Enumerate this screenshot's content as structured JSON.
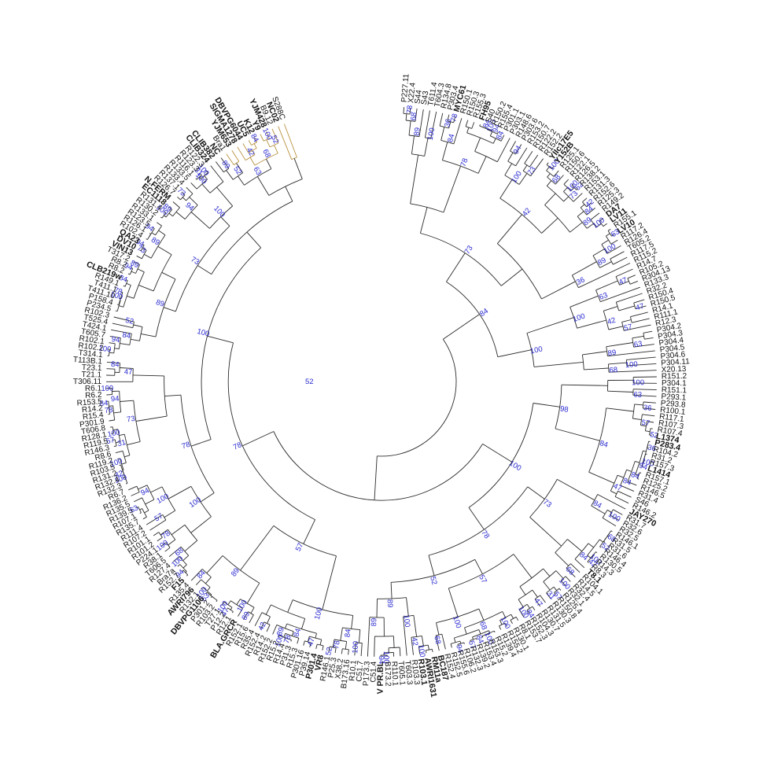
{
  "colors": {
    "default_label": "#111111",
    "red_label": "#e02020",
    "blue_label": "#15157a",
    "purple_label": "#7a1a7a",
    "bootstrap": "#2a2ad0",
    "branch": "#2b2b2b",
    "tan_branch": "#b8913f"
  },
  "root_support": "52",
  "leaves": [
    {
      "label": "P227.11",
      "c": "k"
    },
    {
      "label": "X22.4",
      "c": "k"
    },
    {
      "label": "S44",
      "c": "k"
    },
    {
      "label": "S43",
      "c": "k"
    },
    {
      "label": "T611.4",
      "c": "k"
    },
    {
      "label": "T604.3",
      "c": "k"
    },
    {
      "label": "R134.8",
      "c": "k"
    },
    {
      "label": "P303.4",
      "c": "k"
    },
    {
      "label": "MYC61",
      "c": "r"
    },
    {
      "label": "R150.1",
      "c": "k"
    },
    {
      "label": "R150.3",
      "c": "k"
    },
    {
      "label": "R155.3",
      "c": "k"
    },
    {
      "label": "FH95",
      "c": "r"
    },
    {
      "label": "S40",
      "c": "k"
    },
    {
      "label": "R150.2",
      "c": "k"
    },
    {
      "label": "R155.4",
      "c": "k"
    },
    {
      "label": "P301.1",
      "c": "k"
    },
    {
      "label": "P303.1",
      "c": "k"
    },
    {
      "label": "R148.6",
      "c": "k"
    },
    {
      "label": "P303.6",
      "c": "k"
    },
    {
      "label": "R153.2",
      "c": "k"
    },
    {
      "label": "R150.7",
      "c": "k"
    },
    {
      "label": "R122.2",
      "c": "k"
    },
    {
      "label": "R152.2",
      "c": "k"
    },
    {
      "label": "YIIc17E5",
      "c": "b"
    },
    {
      "label": "Y152B",
      "c": "b"
    },
    {
      "label": "R125.1",
      "c": "k"
    },
    {
      "label": "R150.6",
      "c": "k"
    },
    {
      "label": "R122.1",
      "c": "k"
    },
    {
      "label": "R126.5",
      "c": "k"
    },
    {
      "label": "R138.2",
      "c": "k"
    },
    {
      "label": "R153.1",
      "c": "k"
    },
    {
      "label": "R131.3",
      "c": "k"
    },
    {
      "label": "R152.6",
      "c": "k"
    },
    {
      "label": "R125.3",
      "c": "k"
    },
    {
      "label": "R149.2",
      "c": "k"
    },
    {
      "label": "DA7",
      "c": "r"
    },
    {
      "label": "LV11",
      "c": "r"
    },
    {
      "label": "R155.1",
      "c": "k"
    },
    {
      "label": "LV10",
      "c": "r"
    },
    {
      "label": "R117.2",
      "c": "k"
    },
    {
      "label": "R126.4",
      "c": "k"
    },
    {
      "label": "T605.2",
      "c": "k"
    },
    {
      "label": "R117.5",
      "c": "k"
    },
    {
      "label": "R115.2",
      "c": "k"
    },
    {
      "label": "R14.7",
      "c": "k"
    },
    {
      "label": "R105.2",
      "c": "k"
    },
    {
      "label": "R304.13",
      "c": "k"
    },
    {
      "label": "R133.3",
      "c": "k"
    },
    {
      "label": "R32.2",
      "c": "k"
    },
    {
      "label": "R150.4",
      "c": "k"
    },
    {
      "label": "R150.5",
      "c": "k"
    },
    {
      "label": "R14.1",
      "c": "k"
    },
    {
      "label": "R111.1",
      "c": "k"
    },
    {
      "label": "R12.3",
      "c": "k"
    },
    {
      "label": "P304.2",
      "c": "k"
    },
    {
      "label": "P304.3",
      "c": "k"
    },
    {
      "label": "P304.4",
      "c": "k"
    },
    {
      "label": "P304.5",
      "c": "k"
    },
    {
      "label": "P304.6",
      "c": "k"
    },
    {
      "label": "P304.11",
      "c": "k"
    },
    {
      "label": "X20.13",
      "c": "k"
    },
    {
      "label": "R151.2",
      "c": "k"
    },
    {
      "label": "P304.1",
      "c": "k"
    },
    {
      "label": "R151.1",
      "c": "k"
    },
    {
      "label": "P293.1",
      "c": "k"
    },
    {
      "label": "P293.8",
      "c": "k"
    },
    {
      "label": "R100.1",
      "c": "k"
    },
    {
      "label": "R117.1",
      "c": "k"
    },
    {
      "label": "R107.3",
      "c": "k"
    },
    {
      "label": "R107.4",
      "c": "k"
    },
    {
      "label": "L1374",
      "c": "b"
    },
    {
      "label": "P283.4",
      "c": "p"
    },
    {
      "label": "R104.2",
      "c": "k"
    },
    {
      "label": "R31.2",
      "c": "k"
    },
    {
      "label": "R157.3",
      "c": "k"
    },
    {
      "label": "L1414",
      "c": "r"
    },
    {
      "label": "R157.1",
      "c": "k"
    },
    {
      "label": "R125.2",
      "c": "k"
    },
    {
      "label": "R146.5",
      "c": "k"
    },
    {
      "label": "R31.4",
      "c": "k"
    },
    {
      "label": "S46",
      "c": "k"
    },
    {
      "label": "R146.2",
      "c": "k"
    },
    {
      "label": "JAY270",
      "c": "b"
    },
    {
      "label": "R31.7",
      "c": "k"
    },
    {
      "label": "R32.6",
      "c": "k"
    },
    {
      "label": "R32.5",
      "c": "k"
    },
    {
      "label": "R146.1",
      "c": "k"
    },
    {
      "label": "R31.5",
      "c": "k"
    },
    {
      "label": "R31.6",
      "c": "k"
    },
    {
      "label": "R146.4",
      "c": "k"
    },
    {
      "label": "R130.5",
      "c": "k"
    },
    {
      "label": "R14.3",
      "c": "k"
    },
    {
      "label": "R8.3",
      "c": "k"
    },
    {
      "label": "T8.1",
      "c": "p"
    },
    {
      "label": "R104.1",
      "c": "k"
    },
    {
      "label": "R14.5",
      "c": "k"
    },
    {
      "label": "R32.4",
      "c": "k"
    },
    {
      "label": "R32.1",
      "c": "k"
    },
    {
      "label": "R125.4",
      "c": "k"
    },
    {
      "label": "R150.8",
      "c": "k"
    },
    {
      "label": "R130.3",
      "c": "k"
    },
    {
      "label": "R131.5",
      "c": "k"
    },
    {
      "label": "R130.7",
      "c": "k"
    },
    {
      "label": "R104.3",
      "c": "k"
    },
    {
      "label": "R152.3",
      "c": "k"
    },
    {
      "label": "R153.7",
      "c": "k"
    },
    {
      "label": "R8.1",
      "c": "k"
    },
    {
      "label": "R130.1",
      "c": "k"
    },
    {
      "label": "R155.2",
      "c": "k"
    },
    {
      "label": "R139.4",
      "c": "k"
    },
    {
      "label": "R15.2",
      "c": "k"
    },
    {
      "label": "R153.3",
      "c": "k"
    },
    {
      "label": "R153.4",
      "c": "k"
    },
    {
      "label": "R139.2",
      "c": "k"
    },
    {
      "label": "R132.3",
      "c": "k"
    },
    {
      "label": "R106.2",
      "c": "k"
    },
    {
      "label": "R155.6",
      "c": "k"
    },
    {
      "label": "R152.5",
      "c": "k"
    },
    {
      "label": "R152.4",
      "c": "k"
    },
    {
      "label": "BC187",
      "c": "b"
    },
    {
      "label": "RM11a",
      "c": "b"
    },
    {
      "label": "AWRI1631",
      "c": "r"
    },
    {
      "label": "R103.1",
      "c": "p"
    },
    {
      "label": "R103.3",
      "c": "k"
    },
    {
      "label": "T603.3",
      "c": "k"
    },
    {
      "label": "T605.1",
      "c": "k"
    },
    {
      "label": "R110.1",
      "c": "k"
    },
    {
      "label": "B173.2",
      "c": "k"
    },
    {
      "label": "V PR.BL",
      "c": "r"
    },
    {
      "label": "C51.4",
      "c": "k"
    },
    {
      "label": "P173.3",
      "c": "k"
    },
    {
      "label": "C51.7",
      "c": "k"
    },
    {
      "label": "R10.1",
      "c": "k"
    },
    {
      "label": "B173.16",
      "c": "k"
    },
    {
      "label": "X38.2",
      "c": "k"
    },
    {
      "label": "P25.3",
      "c": "k"
    },
    {
      "label": "R146.1",
      "c": "k"
    },
    {
      "label": "VR8",
      "c": "r"
    },
    {
      "label": "P301.4",
      "c": "p"
    },
    {
      "label": "P39.14",
      "c": "k"
    },
    {
      "label": "P301.16",
      "c": "k"
    },
    {
      "label": "R15.3",
      "c": "k"
    },
    {
      "label": "P31.3",
      "c": "k"
    },
    {
      "label": "R14.4",
      "c": "k"
    },
    {
      "label": "R15.2",
      "c": "k"
    },
    {
      "label": "R152.2",
      "c": "k"
    },
    {
      "label": "R14.2",
      "c": "k"
    },
    {
      "label": "R152.4",
      "c": "k"
    },
    {
      "label": "R35.4",
      "c": "k"
    },
    {
      "label": "R15.6",
      "c": "k"
    },
    {
      "label": "R152.1",
      "c": "k"
    },
    {
      "label": "BLA.GRCR",
      "c": "r"
    },
    {
      "label": "R12.1",
      "c": "k"
    },
    {
      "label": "P12.2",
      "c": "k"
    },
    {
      "label": "T27.1",
      "c": "k"
    },
    {
      "label": "R103.2",
      "c": "k"
    },
    {
      "label": "P301.2",
      "c": "k"
    },
    {
      "label": "DBVPG1106",
      "c": "b"
    },
    {
      "label": "R132.1",
      "c": "k"
    },
    {
      "label": "AWRI796",
      "c": "r"
    },
    {
      "label": "R135.4",
      "c": "k"
    },
    {
      "label": "F15",
      "c": "r"
    },
    {
      "label": "R152.7",
      "c": "k"
    },
    {
      "label": "Bra7a",
      "c": "k"
    },
    {
      "label": "R127.4",
      "c": "k"
    },
    {
      "label": "T606.5",
      "c": "k"
    },
    {
      "label": "R38.1",
      "c": "k"
    },
    {
      "label": "P224.1",
      "c": "k"
    },
    {
      "label": "R101.2",
      "c": "k"
    },
    {
      "label": "R101.1",
      "c": "k"
    },
    {
      "label": "R107.2",
      "c": "k"
    },
    {
      "label": "R111.4",
      "c": "k"
    },
    {
      "label": "R135.7",
      "c": "k"
    },
    {
      "label": "R107.1",
      "c": "k"
    },
    {
      "label": "R139.5",
      "c": "k"
    },
    {
      "label": "R135.5",
      "c": "k"
    },
    {
      "label": "R136.2",
      "c": "k"
    },
    {
      "label": "R6.7",
      "c": "k"
    },
    {
      "label": "R132.3",
      "c": "k"
    },
    {
      "label": "R132.4",
      "c": "k"
    },
    {
      "label": "R131.2",
      "c": "k"
    },
    {
      "label": "R103.5",
      "c": "k"
    },
    {
      "label": "R119.2",
      "c": "k"
    },
    {
      "label": "R8.6",
      "c": "k"
    },
    {
      "label": "R146.3",
      "c": "k"
    },
    {
      "label": "R119.5",
      "c": "k"
    },
    {
      "label": "R128.1",
      "c": "k"
    },
    {
      "label": "T606.8",
      "c": "k"
    },
    {
      "label": "P301.9",
      "c": "k"
    },
    {
      "label": "R15.4",
      "c": "k"
    },
    {
      "label": "R14.2",
      "c": "k"
    },
    {
      "label": "R153.5",
      "c": "k"
    },
    {
      "label": "R6.2",
      "c": "k"
    },
    {
      "label": "R6.1",
      "c": "k"
    },
    {
      "label": "T306.11",
      "c": "k"
    },
    {
      "label": "T21.1",
      "c": "k"
    },
    {
      "label": "T23.1",
      "c": "k"
    },
    {
      "label": "T113B.1",
      "c": "k"
    },
    {
      "label": "T314.1",
      "c": "k"
    },
    {
      "label": "R102.2",
      "c": "k"
    },
    {
      "label": "R102.1",
      "c": "k"
    },
    {
      "label": "T605.7",
      "c": "k"
    },
    {
      "label": "T424.1",
      "c": "k"
    },
    {
      "label": "T525.4",
      "c": "k"
    },
    {
      "label": "R102.3",
      "c": "k"
    },
    {
      "label": "P234.5",
      "c": "k"
    },
    {
      "label": "P158.4",
      "c": "k"
    },
    {
      "label": "T411.10",
      "c": "k"
    },
    {
      "label": "T411.1",
      "c": "k"
    },
    {
      "label": "R149.1",
      "c": "k"
    },
    {
      "label": "CLB219w",
      "c": "b"
    },
    {
      "label": "R8.2",
      "c": "k"
    },
    {
      "label": "R8.2",
      "c": "k"
    },
    {
      "label": "T317.2",
      "c": "k"
    },
    {
      "label": "VIN13",
      "c": "r"
    },
    {
      "label": "DV10",
      "c": "r"
    },
    {
      "label": "QA23",
      "c": "r"
    },
    {
      "label": "R102.4",
      "c": "k"
    },
    {
      "label": "R126.1",
      "c": "k"
    },
    {
      "label": "R123.5",
      "c": "k"
    },
    {
      "label": "R133.1",
      "c": "k"
    },
    {
      "label": "R130.2",
      "c": "k"
    },
    {
      "label": "R131.4",
      "c": "k"
    },
    {
      "label": "EC1118",
      "c": "r"
    },
    {
      "label": "N.FERM",
      "c": "r"
    },
    {
      "label": "R126.7",
      "c": "k"
    },
    {
      "label": "R137.1",
      "c": "k"
    },
    {
      "label": "R133.4",
      "c": "k"
    },
    {
      "label": "R133.5",
      "c": "k"
    },
    {
      "label": "R116.1",
      "c": "k"
    },
    {
      "label": "R123.3",
      "c": "k"
    },
    {
      "label": "R122.3",
      "c": "k"
    },
    {
      "label": "CLIB324",
      "c": "b"
    },
    {
      "label": "CLIB382",
      "c": "b"
    },
    {
      "label": "NC",
      "c": "b"
    },
    {
      "label": "Bra1",
      "c": "k"
    },
    {
      "label": "YJM653",
      "c": "b"
    },
    {
      "label": "SIGMA1278",
      "c": "b"
    },
    {
      "label": "DBVPG6044",
      "c": "b"
    },
    {
      "label": "UC5",
      "c": "b"
    },
    {
      "label": "K12",
      "c": "b"
    },
    {
      "label": "Y9",
      "c": "b"
    },
    {
      "label": "YJM428",
      "c": "b"
    },
    {
      "label": "B9.12",
      "c": "k"
    },
    {
      "label": "NC02",
      "c": "b"
    },
    {
      "label": "S288C",
      "c": "k"
    }
  ],
  "bootstrap_values": [
    "78",
    "68",
    "89",
    "100",
    "36",
    "78",
    "84",
    "78",
    "84",
    "100",
    "94",
    "84",
    "94",
    "100",
    "73",
    "73",
    "100",
    "42",
    "68",
    "100",
    "52",
    "73",
    "42",
    "84",
    "89",
    "100",
    "84",
    "63",
    "100",
    "89",
    "36",
    "47",
    "63",
    "100",
    "47",
    "42",
    "57",
    "100",
    "63",
    "89",
    "100",
    "68",
    "100",
    "63",
    "36",
    "98",
    "57",
    "52",
    "36",
    "84",
    "100",
    "94",
    "84",
    "84",
    "47",
    "84",
    "100",
    "100",
    "68",
    "73",
    "52",
    "100",
    "42",
    "84",
    "68",
    "100",
    "57",
    "31",
    "47",
    "78",
    "84",
    "100",
    "100",
    "57",
    "100",
    "68",
    "84",
    "57",
    "100",
    "94",
    "52",
    "68",
    "100",
    "42",
    "100",
    "89",
    "100",
    "94",
    "89",
    "100",
    "84",
    "78",
    "52",
    "47",
    "100",
    "84",
    "78",
    "100",
    "89",
    "42",
    "57",
    "89",
    "100",
    "47",
    "100",
    "89",
    "63",
    "100",
    "84",
    "94",
    "100",
    "68",
    "100",
    "78",
    "100",
    "57",
    "100",
    "63",
    "94",
    "78",
    "100",
    "42",
    "78",
    "100",
    "31",
    "57",
    "100",
    "73",
    "78",
    "84",
    "94",
    "100",
    "47",
    "84",
    "100",
    "94",
    "84",
    "52",
    "100",
    "100",
    "78",
    "89",
    "84",
    "94",
    "89",
    "73",
    "94",
    "89",
    "73",
    "94",
    "100",
    "89",
    "94",
    "73",
    "100",
    "100",
    "31",
    "100",
    "89",
    "52",
    "63",
    "42",
    "84",
    "68",
    "100",
    "52"
  ]
}
